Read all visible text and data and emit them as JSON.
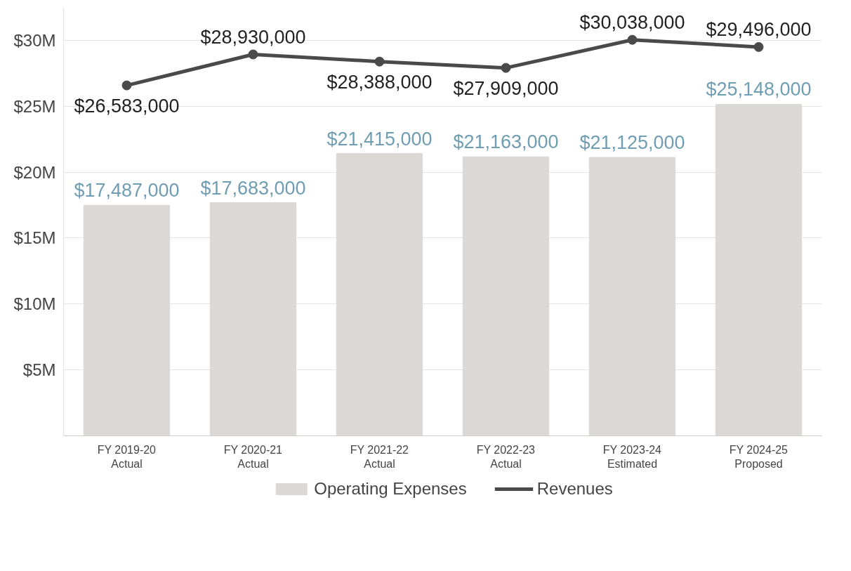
{
  "chart_data": {
    "type": "bar",
    "categories": [
      "FY 2019-20\nActual",
      "FY 2020-21\nActual",
      "FY 2021-22\nActual",
      "FY 2022-23\nActual",
      "FY 2023-24\nEstimated",
      "FY 2024-25\nProposed"
    ],
    "series": [
      {
        "name": "Operating Expenses",
        "color": "#dcd8d5",
        "values": [
          17487000,
          17683000,
          21415000,
          21163000,
          21125000,
          25148000
        ],
        "value_labels": [
          "$17,487,000",
          "$17,683,000",
          "$21,415,000",
          "$21,163,000",
          "$21,125,000",
          "$25,148,000"
        ]
      },
      {
        "name": "Revenues",
        "type": "line",
        "color": "#4a4a4a",
        "values": [
          26583000,
          28930000,
          28388000,
          27909000,
          30038000,
          29496000
        ],
        "value_labels": [
          "$26,583,000",
          "$28,930,000",
          "$28,388,000",
          "$27,909,000",
          "$30,038,000",
          "$29,496,000"
        ]
      }
    ],
    "ylim": [
      0,
      32500000
    ],
    "yticks": [
      {
        "value": 5000000,
        "label": "$5M"
      },
      {
        "value": 10000000,
        "label": "$10M"
      },
      {
        "value": 15000000,
        "label": "$15M"
      },
      {
        "value": 20000000,
        "label": "$20M"
      },
      {
        "value": 25000000,
        "label": "$25M"
      },
      {
        "value": 30000000,
        "label": "$30M"
      }
    ],
    "grid": "y",
    "legend": "bottom",
    "marker": "circle",
    "line_style": "solid"
  }
}
